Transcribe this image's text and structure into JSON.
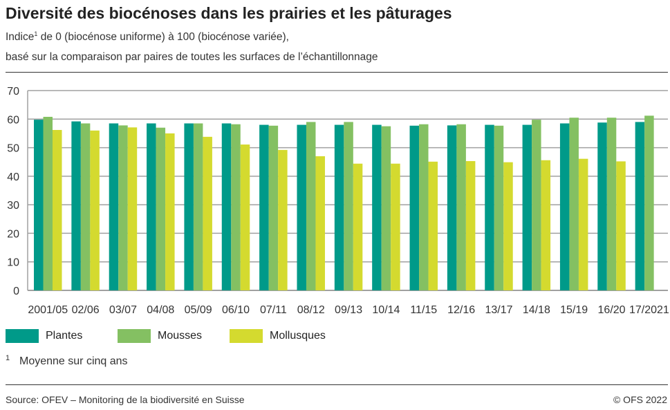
{
  "title": "Diversité des biocénoses dans les prairies et les pâturages",
  "subtitle_line1_pre": "Indice",
  "subtitle_sup": "1",
  "subtitle_line1_post": " de 0 (biocénose uniforme) à 100 (biocénose variée),",
  "subtitle_line2": "basé sur la comparaison par paires de toutes les surfaces de l’échantillonnage",
  "footnote_mark": "1",
  "footnote": "Moyenne sur cinq ans",
  "source": "Source: OFEV – Monitoring de la biodiversité en Suisse",
  "copyright": "© OFS 2022",
  "chart_data": {
    "type": "bar",
    "categories": [
      "2001/05",
      "02/06",
      "03/07",
      "04/08",
      "05/09",
      "06/10",
      "07/11",
      "08/12",
      "09/13",
      "10/14",
      "11/15",
      "12/16",
      "13/17",
      "14/18",
      "15/19",
      "16/20",
      "17/2021"
    ],
    "series": [
      {
        "name": "Plantes",
        "color": "#009A89",
        "values": [
          59.8,
          59.2,
          58.5,
          58.5,
          58.5,
          58.5,
          58.0,
          58.0,
          58.0,
          58.0,
          57.7,
          57.8,
          58.0,
          58.0,
          58.5,
          58.8,
          59.0
        ]
      },
      {
        "name": "Mousses",
        "color": "#84C062",
        "values": [
          60.8,
          58.5,
          57.8,
          57.0,
          58.5,
          58.2,
          57.7,
          59.0,
          59.0,
          57.5,
          58.2,
          58.2,
          57.7,
          59.8,
          60.5,
          60.5,
          61.2
        ]
      },
      {
        "name": "Mollusques",
        "color": "#D4DA2F",
        "values": [
          56.2,
          56.0,
          57.1,
          55.0,
          53.8,
          51.1,
          49.2,
          47.0,
          44.4,
          44.4,
          45.1,
          45.3,
          44.9,
          45.6,
          46.1,
          45.2,
          null
        ]
      }
    ],
    "yticks": [
      0,
      10,
      20,
      30,
      40,
      50,
      60,
      70
    ],
    "ylim": [
      0,
      70
    ],
    "grid": true,
    "legend": "bottom-left"
  }
}
